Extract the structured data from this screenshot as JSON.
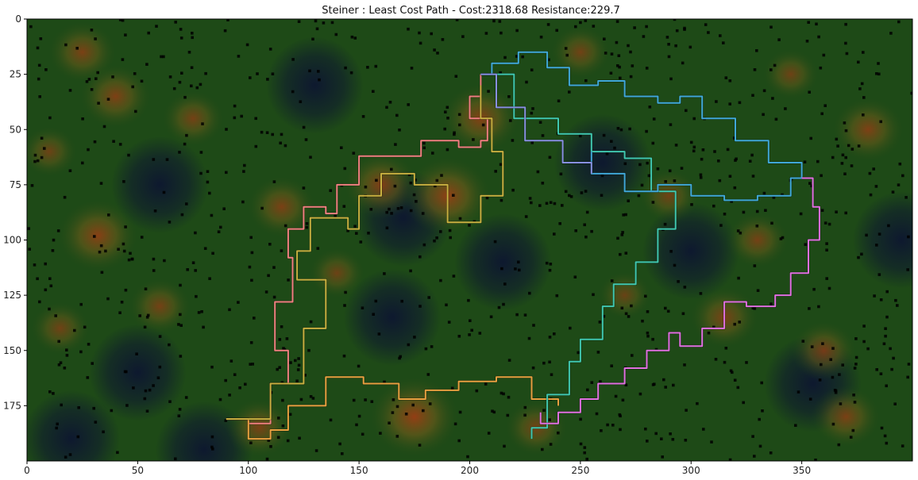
{
  "chart_data": {
    "type": "heatmap",
    "title": "Steiner : Least Cost Path - Cost:2318.68  Resistance:229.7",
    "xlabel": "",
    "ylabel": "",
    "xlim": [
      0,
      400
    ],
    "ylim": [
      200,
      0
    ],
    "x_ticks": [
      0,
      50,
      100,
      150,
      200,
      250,
      300,
      350
    ],
    "y_ticks": [
      0,
      25,
      50,
      75,
      100,
      125,
      150,
      175
    ],
    "grid": false,
    "legend": "none",
    "colors": {
      "background_low": "#0d1630",
      "background_mid": "#1e4a17",
      "background_high": "#a03c14",
      "point_color": "#000000"
    },
    "hotspots": [
      {
        "x": 25,
        "y": 15,
        "level": 0.55
      },
      {
        "x": 40,
        "y": 35,
        "level": 0.6
      },
      {
        "x": 75,
        "y": 45,
        "level": 0.45
      },
      {
        "x": 32,
        "y": 98,
        "level": 0.75
      },
      {
        "x": 115,
        "y": 85,
        "level": 0.55
      },
      {
        "x": 160,
        "y": 75,
        "level": 0.65
      },
      {
        "x": 190,
        "y": 80,
        "level": 0.85
      },
      {
        "x": 205,
        "y": 45,
        "level": 0.7
      },
      {
        "x": 175,
        "y": 180,
        "level": 0.9
      },
      {
        "x": 105,
        "y": 185,
        "level": 0.5
      },
      {
        "x": 250,
        "y": 15,
        "level": 0.4
      },
      {
        "x": 330,
        "y": 100,
        "level": 0.45
      },
      {
        "x": 315,
        "y": 135,
        "level": 0.55
      },
      {
        "x": 360,
        "y": 150,
        "level": 0.5
      },
      {
        "x": 370,
        "y": 180,
        "level": 0.55
      },
      {
        "x": 290,
        "y": 80,
        "level": 0.4
      },
      {
        "x": 380,
        "y": 50,
        "level": 0.6
      },
      {
        "x": 10,
        "y": 60,
        "level": 0.35
      },
      {
        "x": 15,
        "y": 140,
        "level": 0.4
      },
      {
        "x": 230,
        "y": 185,
        "level": 0.45
      },
      {
        "x": 270,
        "y": 125,
        "level": 0.3
      },
      {
        "x": 345,
        "y": 25,
        "level": 0.35
      },
      {
        "x": 60,
        "y": 130,
        "level": 0.45
      },
      {
        "x": 140,
        "y": 115,
        "level": 0.35
      }
    ],
    "lowspots": [
      {
        "x": 60,
        "y": 75
      },
      {
        "x": 170,
        "y": 90
      },
      {
        "x": 215,
        "y": 110
      },
      {
        "x": 165,
        "y": 135
      },
      {
        "x": 300,
        "y": 105
      },
      {
        "x": 355,
        "y": 165
      },
      {
        "x": 50,
        "y": 160
      },
      {
        "x": 130,
        "y": 30
      },
      {
        "x": 260,
        "y": 65
      },
      {
        "x": 395,
        "y": 100
      },
      {
        "x": 80,
        "y": 195
      },
      {
        "x": 20,
        "y": 190
      }
    ],
    "series": [
      {
        "color": "#f08080",
        "points": [
          [
            90,
            181
          ],
          [
            100,
            183
          ],
          [
            110,
            165
          ],
          [
            118,
            150
          ],
          [
            112,
            128
          ],
          [
            120,
            108
          ],
          [
            118,
            95
          ],
          [
            125,
            85
          ],
          [
            135,
            88
          ],
          [
            140,
            75
          ],
          [
            150,
            62
          ],
          [
            165,
            62
          ],
          [
            178,
            55
          ],
          [
            195,
            58
          ],
          [
            205,
            55
          ],
          [
            208,
            45
          ],
          [
            200,
            35
          ],
          [
            205,
            25
          ]
        ]
      },
      {
        "color": "#e8a040",
        "points": [
          [
            90,
            181
          ],
          [
            100,
            190
          ],
          [
            110,
            186
          ],
          [
            118,
            175
          ],
          [
            135,
            162
          ],
          [
            152,
            165
          ],
          [
            168,
            172
          ],
          [
            180,
            168
          ],
          [
            195,
            164
          ],
          [
            212,
            162
          ],
          [
            228,
            172
          ],
          [
            240,
            175
          ]
        ]
      },
      {
        "color": "#c8b040",
        "points": [
          [
            90,
            181
          ],
          [
            110,
            165
          ],
          [
            125,
            140
          ],
          [
            135,
            118
          ],
          [
            122,
            105
          ],
          [
            128,
            90
          ],
          [
            145,
            95
          ],
          [
            150,
            80
          ],
          [
            160,
            70
          ],
          [
            175,
            75
          ],
          [
            190,
            92
          ],
          [
            205,
            80
          ],
          [
            215,
            60
          ],
          [
            210,
            45
          ],
          [
            205,
            30
          ]
        ]
      },
      {
        "color": "#40c8b0",
        "points": [
          [
            205,
            25
          ],
          [
            220,
            45
          ],
          [
            240,
            52
          ],
          [
            255,
            60
          ],
          [
            270,
            63
          ],
          [
            282,
            78
          ],
          [
            293,
            95
          ],
          [
            285,
            110
          ],
          [
            275,
            120
          ],
          [
            265,
            130
          ],
          [
            260,
            145
          ],
          [
            250,
            155
          ],
          [
            245,
            170
          ],
          [
            235,
            185
          ],
          [
            228,
            190
          ]
        ]
      },
      {
        "color": "#40a8d8",
        "points": [
          [
            205,
            25
          ],
          [
            210,
            20
          ],
          [
            222,
            15
          ],
          [
            235,
            22
          ],
          [
            245,
            30
          ],
          [
            258,
            28
          ],
          [
            270,
            35
          ],
          [
            285,
            38
          ],
          [
            295,
            35
          ],
          [
            305,
            45
          ],
          [
            320,
            55
          ],
          [
            335,
            65
          ],
          [
            345,
            65
          ],
          [
            350,
            72
          ],
          [
            345,
            80
          ],
          [
            330,
            82
          ],
          [
            315,
            80
          ],
          [
            300,
            75
          ],
          [
            285,
            78
          ],
          [
            270,
            70
          ],
          [
            255,
            60
          ]
        ]
      },
      {
        "color": "#e070e0",
        "points": [
          [
            350,
            72
          ],
          [
            355,
            85
          ],
          [
            358,
            100
          ],
          [
            353,
            115
          ],
          [
            345,
            125
          ],
          [
            338,
            130
          ],
          [
            325,
            128
          ],
          [
            315,
            140
          ],
          [
            305,
            148
          ],
          [
            295,
            142
          ],
          [
            290,
            150
          ],
          [
            280,
            158
          ],
          [
            270,
            165
          ],
          [
            258,
            172
          ],
          [
            250,
            178
          ],
          [
            240,
            183
          ],
          [
            232,
            178
          ]
        ]
      },
      {
        "color": "#8890e0",
        "points": [
          [
            205,
            25
          ],
          [
            212,
            40
          ],
          [
            225,
            55
          ],
          [
            242,
            65
          ],
          [
            255,
            70
          ]
        ]
      }
    ]
  }
}
